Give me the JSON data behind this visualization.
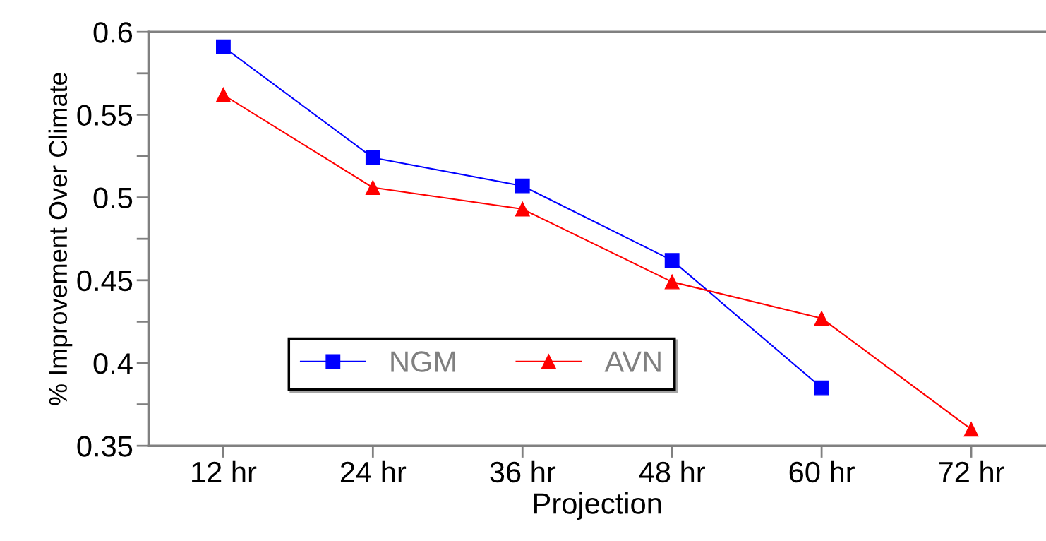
{
  "chart_data": {
    "type": "line",
    "xlabel": "Projection",
    "ylabel": "% Improvement Over Climate",
    "categories": [
      "12 hr",
      "24 hr",
      "36 hr",
      "48 hr",
      "60 hr",
      "72 hr"
    ],
    "series": [
      {
        "name": "NGM",
        "color": "#0000ff",
        "marker": "square",
        "values": [
          0.591,
          0.524,
          0.507,
          0.462,
          0.385,
          null
        ]
      },
      {
        "name": "AVN",
        "color": "#ff0000",
        "marker": "triangle",
        "values": [
          0.562,
          0.506,
          0.493,
          0.449,
          0.427,
          0.36
        ]
      }
    ],
    "ylim": [
      0.35,
      0.6
    ],
    "yticks": [
      0.35,
      0.4,
      0.45,
      0.5,
      0.55,
      0.6
    ],
    "grid": false,
    "legend": "bottom left",
    "line_style": "solid"
  }
}
